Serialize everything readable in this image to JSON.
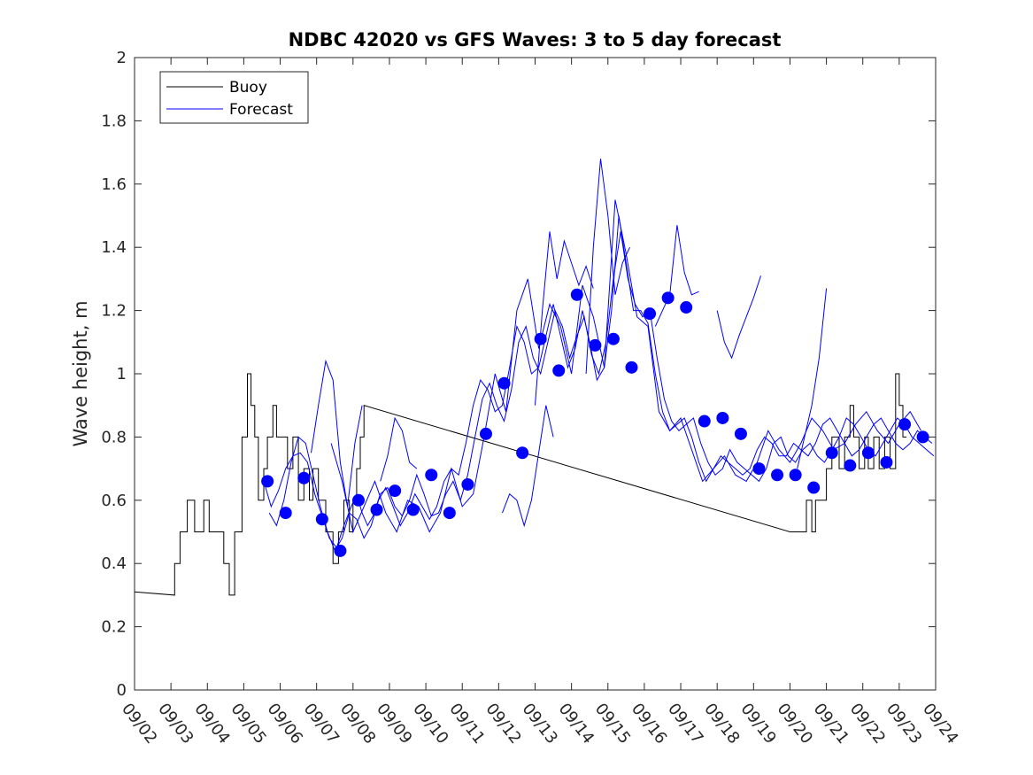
{
  "chart_data": {
    "type": "line",
    "title": "NDBC 42020 vs GFS Waves: 3 to 5 day forecast",
    "xlabel": "",
    "ylabel": "Wave height, m",
    "ylim": [
      0,
      2
    ],
    "xlim": [
      0,
      22
    ],
    "y_ticks": [
      "0",
      "0.2",
      "0.4",
      "0.6",
      "0.8",
      "1",
      "1.2",
      "1.4",
      "1.6",
      "1.8",
      "2"
    ],
    "x_tick_labels": [
      "09/02",
      "09/03",
      "09/04",
      "09/05",
      "09/06",
      "09/07",
      "09/08",
      "09/09",
      "09/10",
      "09/11",
      "09/12",
      "09/13",
      "09/14",
      "09/15",
      "09/16",
      "09/17",
      "09/18",
      "09/19",
      "09/20",
      "09/21",
      "09/22",
      "09/23",
      "09/24"
    ],
    "legend": {
      "location": "top-left",
      "entries": [
        {
          "label": "Buoy",
          "color": "#000000"
        },
        {
          "label": "Forecast",
          "color": "#0000ff"
        }
      ]
    },
    "buoy": {
      "name": "Buoy",
      "color": "#000000",
      "x": [
        0,
        1.1,
        1.1,
        1.25,
        1.25,
        1.45,
        1.45,
        1.65,
        1.65,
        1.9,
        1.9,
        2.05,
        2.05,
        2.45,
        2.45,
        2.6,
        2.6,
        2.75,
        2.75,
        2.95,
        2.95,
        3.1,
        3.1,
        3.2,
        3.2,
        3.3,
        3.3,
        3.4,
        3.4,
        3.55,
        3.55,
        3.65,
        3.65,
        3.8,
        3.8,
        3.9,
        3.9,
        4.2,
        4.2,
        4.35,
        4.35,
        4.5,
        4.5,
        4.65,
        4.65,
        4.8,
        4.8,
        4.9,
        4.9,
        5.05,
        5.05,
        5.25,
        5.25,
        5.45,
        5.45,
        5.6,
        5.6,
        5.75,
        5.75,
        5.9,
        5.9,
        6.0,
        6.0,
        6.1,
        6.1,
        6.2,
        6.2,
        6.3,
        6.3,
        18.0,
        18.0,
        18.45,
        18.45,
        18.6,
        18.6,
        18.7,
        18.7,
        19.0,
        19.0,
        19.15,
        19.15,
        19.35,
        19.35,
        19.5,
        19.5,
        19.65,
        19.65,
        19.75,
        19.75,
        19.9,
        19.9,
        20.05,
        20.05,
        20.15,
        20.15,
        20.3,
        20.3,
        20.45,
        20.45,
        20.6,
        20.6,
        20.75,
        20.75,
        20.9,
        20.9,
        21.0,
        21.0,
        21.1,
        21.1,
        21.2
      ],
      "y": [
        0.31,
        0.3,
        0.4,
        0.4,
        0.5,
        0.5,
        0.6,
        0.6,
        0.5,
        0.5,
        0.6,
        0.6,
        0.5,
        0.5,
        0.4,
        0.4,
        0.3,
        0.3,
        0.5,
        0.5,
        0.8,
        0.8,
        1.0,
        1.0,
        0.9,
        0.9,
        0.8,
        0.8,
        0.6,
        0.6,
        0.7,
        0.7,
        0.8,
        0.8,
        0.9,
        0.9,
        0.8,
        0.8,
        0.7,
        0.7,
        0.8,
        0.8,
        0.6,
        0.6,
        0.7,
        0.7,
        0.6,
        0.6,
        0.7,
        0.7,
        0.6,
        0.6,
        0.5,
        0.5,
        0.4,
        0.4,
        0.5,
        0.5,
        0.6,
        0.6,
        0.5,
        0.5,
        0.6,
        0.6,
        0.7,
        0.7,
        0.8,
        0.8,
        0.9,
        0.5,
        0.5,
        0.5,
        0.6,
        0.6,
        0.5,
        0.5,
        0.6,
        0.6,
        0.7,
        0.7,
        0.8,
        0.8,
        0.7,
        0.7,
        0.8,
        0.8,
        0.9,
        0.9,
        0.8,
        0.8,
        0.7,
        0.7,
        0.8,
        0.8,
        0.7,
        0.7,
        0.8,
        0.8,
        0.7,
        0.7,
        0.8,
        0.8,
        0.7,
        0.7,
        1.0,
        1.0,
        0.9,
        0.9,
        0.8,
        0.8
      ]
    },
    "forecast_series": [
      {
        "name": "Forecast",
        "x": [
          3.55,
          3.75,
          3.95,
          4.15,
          4.35,
          4.55,
          4.75,
          4.95,
          5.15,
          5.35,
          5.55,
          5.75,
          5.95,
          6.1,
          6.25,
          6.4,
          6.55,
          6.75,
          6.95,
          7.15,
          7.35,
          7.55,
          7.75,
          7.95,
          8.15,
          8.35,
          8.55,
          8.75,
          8.95,
          9.15,
          9.35,
          9.55,
          9.75,
          9.95,
          10.15,
          10.35,
          10.55,
          10.75,
          10.95,
          11.15,
          11.35,
          11.55,
          11.75,
          11.95,
          12.15,
          12.35,
          12.55,
          12.75,
          12.95,
          13.15,
          13.35,
          13.55,
          13.75,
          13.95,
          14.15,
          14.35,
          14.55,
          14.75,
          14.95,
          15.15,
          15.35,
          15.55,
          15.75,
          15.95,
          16.15,
          16.35,
          16.55,
          16.75,
          16.95,
          17.15,
          17.35,
          17.55,
          17.75,
          17.95,
          18.15,
          18.35,
          18.55,
          18.75,
          18.95,
          19.15,
          19.35,
          19.55,
          19.75,
          19.95,
          20.15,
          20.35,
          20.55,
          20.75,
          20.95,
          21.15,
          21.35,
          21.55,
          21.75,
          21.95
        ],
        "y": [
          0.66,
          0.58,
          0.63,
          0.7,
          0.74,
          0.75,
          0.72,
          0.62,
          0.55,
          0.48,
          0.45,
          0.52,
          0.58,
          0.62,
          0.56,
          0.52,
          0.55,
          0.62,
          0.64,
          0.58,
          0.55,
          0.6,
          0.68,
          0.62,
          0.55,
          0.56,
          0.62,
          0.66,
          0.6,
          0.68,
          0.8,
          0.92,
          0.97,
          0.9,
          0.85,
          0.95,
          1.1,
          1.15,
          1.05,
          1.0,
          1.1,
          1.2,
          1.15,
          1.05,
          1.12,
          1.18,
          1.06,
          1.0,
          1.1,
          1.3,
          1.45,
          1.3,
          1.22,
          1.18,
          1.2,
          1.05,
          0.92,
          0.85,
          0.82,
          0.84,
          0.86,
          0.78,
          0.72,
          0.68,
          0.7,
          0.76,
          0.72,
          0.7,
          0.68,
          0.66,
          0.7,
          0.78,
          0.8,
          0.74,
          0.72,
          0.76,
          0.78,
          0.74,
          0.72,
          0.76,
          0.8,
          0.86,
          0.84,
          0.8,
          0.76,
          0.74,
          0.78,
          0.82,
          0.86,
          0.84,
          0.8,
          0.78,
          0.76,
          0.74
        ]
      },
      {
        "name": "Forecast",
        "x": [
          3.7,
          3.9,
          4.1,
          4.3,
          4.5,
          4.7,
          4.9,
          5.1,
          5.3,
          5.5,
          5.7,
          5.9,
          6.1,
          6.3,
          6.5,
          6.7,
          6.9,
          7.1,
          7.3,
          7.5,
          7.7,
          7.9,
          8.1,
          8.3,
          8.5,
          8.7,
          8.9,
          9.1,
          9.3,
          9.5,
          9.7,
          9.9,
          10.1,
          10.3,
          10.5,
          10.7,
          10.9,
          11.1,
          11.3,
          11.5,
          11.7,
          11.9,
          12.1,
          12.3,
          12.5,
          12.7,
          12.9,
          13.1,
          13.3,
          13.5,
          13.7,
          13.9,
          14.1,
          14.3,
          14.5,
          14.7,
          14.9,
          15.1,
          15.3,
          15.5,
          15.7,
          15.9,
          16.1,
          16.3,
          16.5,
          16.7,
          16.9,
          17.1,
          17.3,
          17.5,
          17.7,
          17.9,
          18.1,
          18.3,
          18.5,
          18.7,
          18.9,
          19.1,
          19.3,
          19.5,
          19.7,
          19.9,
          20.1,
          20.3,
          20.5,
          20.7,
          20.9,
          21.1,
          21.3,
          21.5,
          21.7,
          21.9
        ],
        "y": [
          0.56,
          0.52,
          0.6,
          0.72,
          0.8,
          0.78,
          0.68,
          0.58,
          0.5,
          0.44,
          0.48,
          0.56,
          0.54,
          0.48,
          0.52,
          0.6,
          0.64,
          0.58,
          0.52,
          0.56,
          0.62,
          0.58,
          0.54,
          0.58,
          0.66,
          0.7,
          0.68,
          0.78,
          0.9,
          0.98,
          0.95,
          0.88,
          0.9,
          1.02,
          1.15,
          1.1,
          1.0,
          1.02,
          1.12,
          1.22,
          1.12,
          1.02,
          1.08,
          1.2,
          1.1,
          0.98,
          1.02,
          1.2,
          1.5,
          1.35,
          1.2,
          1.2,
          1.16,
          1.0,
          0.88,
          0.82,
          0.84,
          0.86,
          0.8,
          0.72,
          0.66,
          0.7,
          0.74,
          0.72,
          0.7,
          0.68,
          0.7,
          0.76,
          0.8,
          0.78,
          0.74,
          0.74,
          0.78,
          0.76,
          0.74,
          0.78,
          0.84,
          0.86,
          0.82,
          0.78,
          0.74,
          0.76,
          0.8,
          0.84,
          0.86,
          0.82,
          0.78,
          0.76,
          0.78,
          0.82,
          0.8,
          0.78
        ]
      },
      {
        "name": "Forecast",
        "x": [
          5.4,
          5.7,
          6.0,
          6.3,
          6.6,
          6.9,
          7.2,
          7.5,
          7.8,
          8.1,
          8.4,
          8.7,
          9.0,
          9.3,
          9.6,
          9.9,
          10.2,
          10.5,
          10.8,
          11.1,
          11.4,
          11.7,
          12.0,
          12.3,
          12.6,
          12.9,
          13.2,
          13.5,
          13.8,
          14.1,
          14.4,
          14.7,
          15.0,
          15.3,
          15.6,
          15.9,
          16.2,
          16.5,
          16.8,
          17.1,
          17.4,
          17.7,
          18.0,
          18.3,
          18.6,
          18.9,
          19.2,
          19.5,
          19.8,
          20.1,
          20.4,
          20.7,
          21.0,
          21.3,
          21.6
        ],
        "y": [
          0.78,
          0.66,
          0.5,
          0.58,
          0.66,
          0.56,
          0.5,
          0.6,
          0.58,
          0.5,
          0.56,
          0.7,
          0.58,
          0.62,
          0.8,
          1.0,
          0.88,
          1.2,
          1.3,
          1.08,
          1.22,
          1.15,
          1.0,
          1.28,
          1.18,
          1.02,
          1.55,
          1.38,
          1.18,
          1.15,
          0.88,
          0.82,
          0.86,
          0.76,
          0.66,
          0.7,
          0.74,
          0.68,
          0.66,
          0.72,
          0.82,
          0.76,
          0.72,
          0.78,
          0.86,
          0.82,
          0.76,
          0.78,
          0.84,
          0.88,
          0.82,
          0.78,
          0.84,
          0.88,
          0.82
        ]
      }
    ],
    "forecast_short_series": [
      {
        "name": "Forecast",
        "x": [
          4.85,
          5.05,
          5.25,
          5.45,
          5.65,
          5.85,
          6.05,
          6.25
        ],
        "y": [
          0.75,
          0.9,
          1.04,
          0.98,
          0.72,
          0.58,
          0.78,
          0.9
        ]
      },
      {
        "name": "Forecast",
        "x": [
          6.75,
          6.95,
          7.15,
          7.35,
          7.55,
          7.75
        ],
        "y": [
          0.66,
          0.74,
          0.86,
          0.82,
          0.72,
          0.7
        ]
      },
      {
        "name": "Forecast",
        "x": [
          10.1,
          10.3,
          10.5,
          10.7,
          10.9,
          11.1,
          11.3,
          11.5
        ],
        "y": [
          0.56,
          0.62,
          0.6,
          0.52,
          0.6,
          0.75,
          0.9,
          0.8
        ]
      },
      {
        "name": "Forecast",
        "x": [
          11.0,
          11.2,
          11.4,
          11.6,
          11.8,
          12.0,
          12.2,
          12.4,
          12.6
        ],
        "y": [
          0.9,
          1.2,
          1.45,
          1.3,
          1.42,
          1.35,
          1.28,
          1.34,
          1.27
        ]
      },
      {
        "name": "Forecast",
        "x": [
          12.4,
          12.6,
          12.8,
          13.0,
          13.2,
          13.4,
          13.6
        ],
        "y": [
          1.0,
          1.4,
          1.68,
          1.5,
          1.25,
          1.35,
          1.4
        ]
      },
      {
        "name": "Forecast",
        "x": [
          14.3,
          14.5,
          14.7,
          14.9,
          15.1,
          15.3,
          15.5
        ],
        "y": [
          1.15,
          1.2,
          1.25,
          1.47,
          1.32,
          1.25,
          1.26
        ]
      },
      {
        "name": "Forecast",
        "x": [
          16.0,
          16.2,
          16.4,
          16.6,
          16.8,
          17.0,
          17.2
        ],
        "y": [
          1.2,
          1.1,
          1.05,
          1.12,
          1.18,
          1.24,
          1.31
        ]
      },
      {
        "name": "Forecast",
        "x": [
          18.2,
          18.4,
          18.6,
          18.8,
          19.0
        ],
        "y": [
          0.7,
          0.8,
          0.9,
          1.05,
          1.27
        ]
      }
    ],
    "forecast_markers": {
      "x": [
        3.65,
        4.15,
        4.65,
        5.15,
        5.65,
        6.15,
        6.65,
        7.15,
        7.65,
        8.15,
        8.65,
        9.15,
        9.65,
        10.15,
        10.65,
        11.15,
        11.65,
        12.15,
        12.65,
        13.15,
        13.65,
        14.15,
        14.65,
        15.15,
        15.65,
        16.15,
        16.65,
        17.15,
        17.65,
        18.15,
        18.65,
        19.15,
        19.65,
        20.15,
        20.65,
        21.15,
        21.65
      ],
      "y": [
        0.66,
        0.56,
        0.67,
        0.54,
        0.44,
        0.6,
        0.57,
        0.63,
        0.57,
        0.68,
        0.56,
        0.65,
        0.81,
        0.97,
        0.75,
        1.11,
        1.01,
        1.25,
        1.09,
        1.11,
        1.02,
        1.19,
        1.24,
        1.21,
        0.85,
        0.86,
        0.81,
        0.7,
        0.68,
        0.68,
        0.64,
        0.75,
        0.71,
        0.75,
        0.72,
        0.84,
        0.8
      ]
    }
  }
}
